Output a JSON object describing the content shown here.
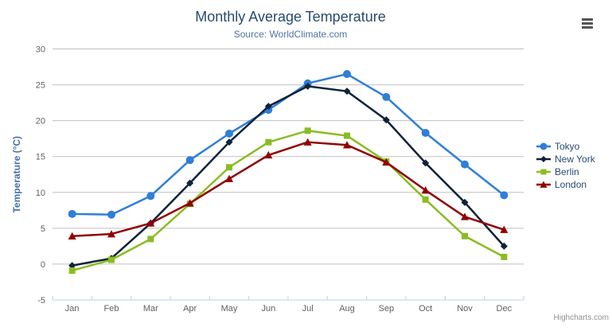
{
  "header": {
    "title": "Monthly Average Temperature",
    "subtitle": "Source: WorldClimate.com"
  },
  "credits": {
    "label": "Highcharts.com"
  },
  "export_menu": {
    "icon": "hamburger-icon"
  },
  "chart_data": {
    "type": "line",
    "title": "Monthly Average Temperature",
    "subtitle": "Source: WorldClimate.com",
    "categories": [
      "Jan",
      "Feb",
      "Mar",
      "Apr",
      "May",
      "Jun",
      "Jul",
      "Aug",
      "Sep",
      "Oct",
      "Nov",
      "Dec"
    ],
    "xlabel": "",
    "ylabel": "Temperature (°C)",
    "ylim": [
      -5,
      30
    ],
    "ytick_interval": 5,
    "grid": true,
    "legend_position": "right",
    "series": [
      {
        "name": "Tokyo",
        "color": "#2f7ed8",
        "symbol": "circle",
        "values": [
          7.0,
          6.9,
          9.5,
          14.5,
          18.2,
          21.5,
          25.2,
          26.5,
          23.3,
          18.3,
          13.9,
          9.6
        ]
      },
      {
        "name": "New York",
        "color": "#0d233a",
        "symbol": "diamond",
        "values": [
          -0.2,
          0.8,
          5.7,
          11.3,
          17.0,
          22.0,
          24.8,
          24.1,
          20.1,
          14.1,
          8.6,
          2.5
        ]
      },
      {
        "name": "Berlin",
        "color": "#8bbc21",
        "symbol": "square",
        "values": [
          -0.9,
          0.6,
          3.5,
          8.4,
          13.5,
          17.0,
          18.6,
          17.9,
          14.3,
          9.0,
          3.9,
          1.0
        ]
      },
      {
        "name": "London",
        "color": "#910000",
        "symbol": "triangle",
        "values": [
          3.9,
          4.2,
          5.7,
          8.5,
          11.9,
          15.2,
          17.0,
          16.6,
          14.2,
          10.3,
          6.6,
          4.8
        ]
      }
    ],
    "style": {
      "grid_color": "#C0C0C0",
      "axis_line_color": "#C0D0E0",
      "axis_label_color": "#606060",
      "axis_title_color": "#4572A7",
      "title_color": "#274b6d",
      "subtitle_color": "#4d759e",
      "legend_text_color": "#274b6d"
    }
  }
}
